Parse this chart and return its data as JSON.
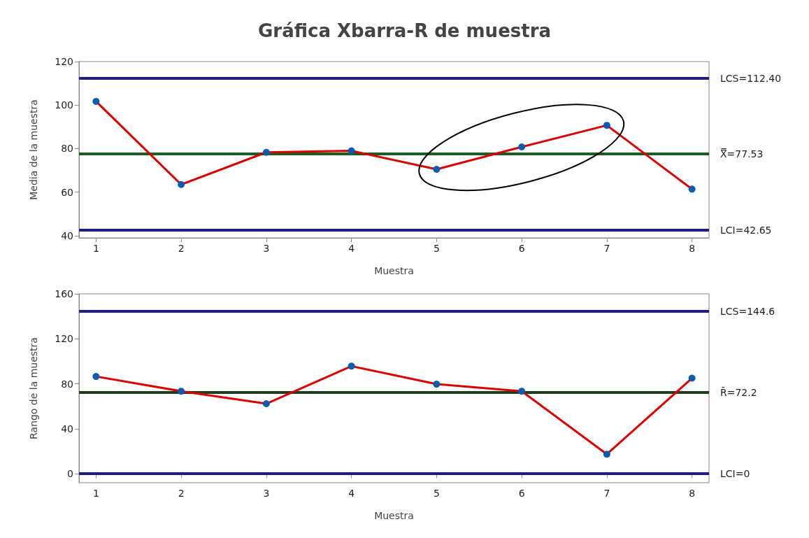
{
  "chart_data": [
    {
      "type": "line",
      "title": "Gráfica Xbarra-R de muestra",
      "xlabel": "Muestra",
      "ylabel": "Media de la muestra",
      "x": [
        1,
        2,
        3,
        4,
        5,
        6,
        7,
        8
      ],
      "series": [
        {
          "color": "#dd0000",
          "values": [
            101.7,
            63.5,
            78.3,
            79.0,
            70.5,
            80.8,
            90.7,
            61.4
          ]
        }
      ],
      "xlim": [
        0.8,
        8.2
      ],
      "xticks": [
        1,
        2,
        3,
        4,
        5,
        6,
        7,
        8
      ],
      "ylim": [
        39,
        120
      ],
      "yticks": [
        40,
        60,
        80,
        100,
        120
      ],
      "marker": "circle",
      "line_style": "solid",
      "grid": false,
      "ref_lines": [
        {
          "axis": "y",
          "value": 112.4,
          "label": "LCS=112.40",
          "color": "#1c1c8c"
        },
        {
          "axis": "y",
          "value": 77.53,
          "label": "X̿=77.53",
          "color": "#1b5e20"
        },
        {
          "axis": "y",
          "value": 42.65,
          "label": "LCI=42.65",
          "color": "#1c1c8c"
        }
      ]
    },
    {
      "type": "line",
      "xlabel": "Muestra",
      "ylabel": "Rango de la muestra",
      "x": [
        1,
        2,
        3,
        4,
        5,
        6,
        7,
        8
      ],
      "series": [
        {
          "color": "#dd0000",
          "values": [
            86.5,
            73.4,
            62.3,
            95.7,
            79.7,
            73.4,
            17.4,
            85.0
          ]
        }
      ],
      "xlim": [
        0.8,
        8.2
      ],
      "xticks": [
        1,
        2,
        3,
        4,
        5,
        6,
        7,
        8
      ],
      "ylim": [
        -8,
        160
      ],
      "yticks": [
        0,
        40,
        80,
        120,
        160
      ],
      "marker": "circle",
      "line_style": "solid",
      "grid": false,
      "ref_lines": [
        {
          "axis": "y",
          "value": 144.6,
          "label": "LCS=144.6",
          "color": "#1c1c8c"
        },
        {
          "axis": "y",
          "value": 72.2,
          "label": "R̄=72.2",
          "color": "#1f3d1f"
        },
        {
          "axis": "y",
          "value": 0,
          "label": "LCI=0",
          "color": "#1c1c8c"
        }
      ]
    }
  ]
}
